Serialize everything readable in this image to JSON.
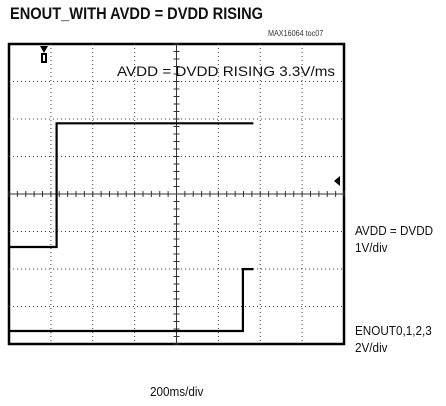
{
  "chart_data": {
    "type": "line",
    "title": "ENOUT_WITH AVDD = DVDD RISING",
    "figure_id": "MAX16064 toc07",
    "annotation": "AVDD = DVDD RISING 3.3V/ms",
    "xlabel": "200ms/div",
    "x_divisions": 8,
    "y_divisions": 8,
    "grid": true,
    "series": [
      {
        "name": "AVDD = DVDD",
        "scale": "1V/div",
        "x": [
          -0.8,
          0.0,
          0.0,
          0.06,
          0.06,
          0.3,
          0.3,
          1.0
        ],
        "y": [
          0.0,
          0.0,
          0.0,
          0.0,
          3.3,
          3.3,
          3.3,
          3.3
        ],
        "x_unit": "s",
        "y_unit": "V"
      },
      {
        "name": "ENOUT0,1,2,3",
        "scale": "2V/div",
        "x": [
          -0.8,
          0.0,
          0.95,
          0.95,
          1.0
        ],
        "y": [
          0.0,
          0.0,
          0.0,
          3.3,
          3.3
        ],
        "x_unit": "s",
        "y_unit": "V"
      }
    ],
    "labels": {
      "avdd_name": "AVDD = DVDD",
      "avdd_scale": "1V/div",
      "enout_name": "ENOUT0,1,2,3",
      "enout_scale": "2V/div"
    },
    "marker_icons": [
      "trigger-marker-icon",
      "level-marker-icon"
    ]
  }
}
